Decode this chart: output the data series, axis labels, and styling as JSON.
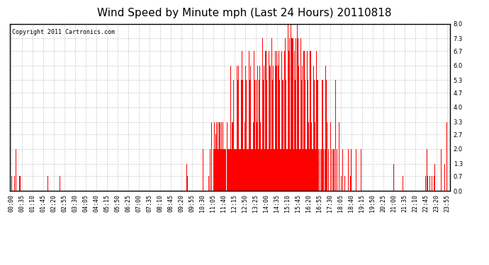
{
  "title": "Wind Speed by Minute mph (Last 24 Hours) 20110818",
  "copyright_text": "Copyright 2011 Cartronics.com",
  "bar_color": "#ff0000",
  "background_color": "#ffffff",
  "plot_bg_color": "#ffffff",
  "ylim": [
    0.0,
    8.0
  ],
  "yticks": [
    0.0,
    0.7,
    1.3,
    2.0,
    2.7,
    3.3,
    4.0,
    4.7,
    5.3,
    6.0,
    6.7,
    7.3,
    8.0
  ],
  "grid_color": "#bbbbbb",
  "title_fontsize": 11,
  "tick_fontsize": 6,
  "copyright_fontsize": 6,
  "total_minutes": 1440,
  "xtick_positions": [
    0,
    35,
    70,
    105,
    140,
    175,
    210,
    245,
    280,
    315,
    350,
    385,
    420,
    455,
    490,
    525,
    560,
    595,
    630,
    665,
    700,
    735,
    770,
    805,
    840,
    875,
    910,
    945,
    980,
    1015,
    1050,
    1085,
    1120,
    1155,
    1190,
    1225,
    1260,
    1295,
    1330,
    1365,
    1400,
    1435
  ],
  "xtick_labels": [
    "00:00",
    "00:35",
    "01:10",
    "01:45",
    "02:20",
    "02:55",
    "03:30",
    "04:05",
    "04:40",
    "05:15",
    "05:50",
    "06:25",
    "07:00",
    "07:35",
    "08:10",
    "08:45",
    "09:20",
    "09:55",
    "10:30",
    "11:05",
    "11:40",
    "12:15",
    "12:50",
    "13:25",
    "14:00",
    "14:35",
    "15:10",
    "15:45",
    "16:20",
    "16:55",
    "17:30",
    "18:05",
    "18:40",
    "19:15",
    "19:50",
    "20:25",
    "21:00",
    "21:35",
    "22:10",
    "22:45",
    "23:20",
    "23:55"
  ]
}
